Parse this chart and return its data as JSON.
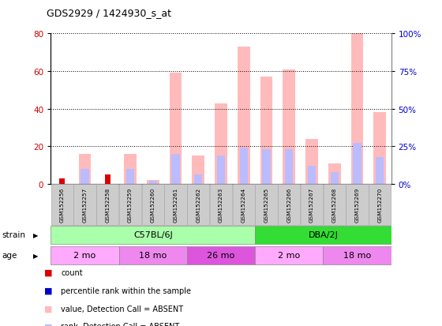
{
  "title": "GDS2929 / 1424930_s_at",
  "samples": [
    "GSM152256",
    "GSM152257",
    "GSM152258",
    "GSM152259",
    "GSM152260",
    "GSM152261",
    "GSM152262",
    "GSM152263",
    "GSM152264",
    "GSM152265",
    "GSM152266",
    "GSM152267",
    "GSM152268",
    "GSM152269",
    "GSM152270"
  ],
  "count_values": [
    3,
    0,
    5,
    0,
    0,
    0,
    0,
    0,
    0,
    0,
    0,
    0,
    0,
    0,
    0
  ],
  "rank_values": [
    0,
    0,
    0,
    0,
    0,
    0,
    0,
    0,
    0,
    0,
    0,
    0,
    0,
    0,
    0
  ],
  "absent_value_values": [
    0,
    16,
    0,
    16,
    2,
    59,
    15,
    43,
    73,
    57,
    61,
    24,
    11,
    80,
    38
  ],
  "absent_rank_values": [
    0,
    10,
    0,
    10,
    2,
    20,
    6,
    19,
    24,
    23,
    23,
    12,
    8,
    27,
    18
  ],
  "color_count": "#dd0000",
  "color_rank": "#0000cc",
  "color_absent_value": "#ffbbbb",
  "color_absent_rank": "#bbbbff",
  "ylim_left": [
    0,
    80
  ],
  "ylim_right": [
    0,
    100
  ],
  "yticks_left": [
    0,
    20,
    40,
    60,
    80
  ],
  "yticks_right": [
    0,
    25,
    50,
    75,
    100
  ],
  "ytick_labels_right": [
    "0%",
    "25%",
    "50%",
    "75%",
    "100%"
  ],
  "strain_groups": [
    {
      "label": "C57BL/6J",
      "start": 0,
      "end": 9,
      "color": "#aaffaa",
      "edge": "#888888"
    },
    {
      "label": "DBA/2J",
      "start": 9,
      "end": 15,
      "color": "#33dd33",
      "edge": "#888888"
    }
  ],
  "age_groups": [
    {
      "label": "2 mo",
      "start": 0,
      "end": 3,
      "color": "#ffaaff",
      "edge": "#888888"
    },
    {
      "label": "18 mo",
      "start": 3,
      "end": 6,
      "color": "#ee88ee",
      "edge": "#888888"
    },
    {
      "label": "26 mo",
      "start": 6,
      "end": 9,
      "color": "#dd55dd",
      "edge": "#888888"
    },
    {
      "label": "2 mo",
      "start": 9,
      "end": 12,
      "color": "#ffaaff",
      "edge": "#888888"
    },
    {
      "label": "18 mo",
      "start": 12,
      "end": 15,
      "color": "#ee88ee",
      "edge": "#888888"
    }
  ],
  "bg_color": "#ffffff",
  "grid_color": "#000000",
  "sample_bg_color": "#cccccc",
  "sample_edge_color": "#aaaaaa",
  "ylabel_left_color": "#cc0000",
  "ylabel_right_color": "#0000cc"
}
